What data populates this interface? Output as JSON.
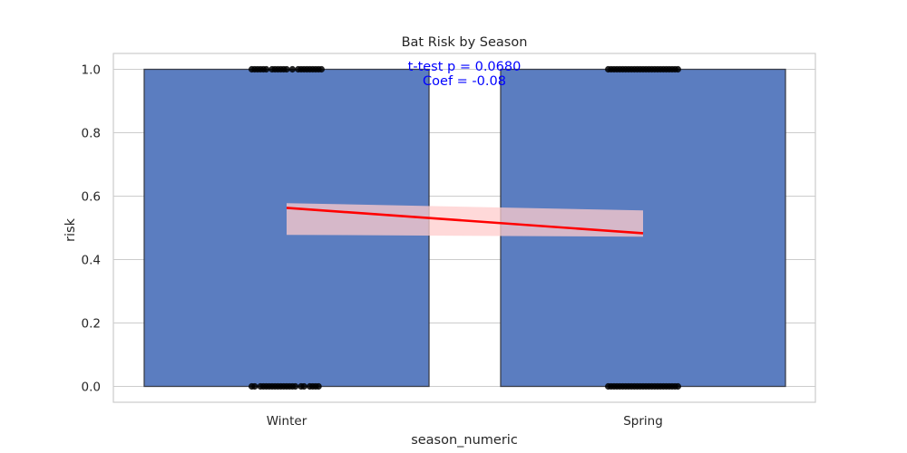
{
  "chart_data": {
    "type": "bar",
    "title": "Bat Risk by Season",
    "xlabel": "season_numeric",
    "ylabel": "risk",
    "categories": [
      "Winter",
      "Spring"
    ],
    "values": [
      1.0,
      1.0
    ],
    "ylim": [
      -0.05,
      1.05
    ],
    "yticks": [
      0.0,
      0.2,
      0.4,
      0.6,
      0.8,
      1.0
    ],
    "ytick_labels": [
      "0.0",
      "0.2",
      "0.4",
      "0.6",
      "0.8",
      "1.0"
    ],
    "grid": true,
    "annotations": [
      "t-test p = 0.0680",
      "Coef = -0.08"
    ],
    "regression": {
      "x": [
        0,
        1
      ],
      "y": [
        0.563,
        0.483
      ],
      "ci_lower": [
        0.478,
        0.472
      ],
      "ci_upper": [
        0.578,
        0.555
      ]
    },
    "points": [
      {
        "x": 0,
        "y": 1.0,
        "offsets": [
          -0.12,
          -0.11,
          -0.1,
          -0.09,
          -0.08,
          -0.07,
          -0.05,
          -0.04,
          -0.03,
          -0.02,
          -0.01,
          0.0,
          0.02,
          0.04,
          0.05,
          0.06,
          0.07,
          0.08,
          0.09,
          0.1,
          0.11,
          0.12
        ]
      },
      {
        "x": 0,
        "y": 0.0,
        "offsets": [
          -0.12,
          -0.11,
          -0.09,
          -0.08,
          -0.07,
          -0.06,
          -0.05,
          -0.04,
          -0.03,
          -0.02,
          -0.01,
          0.0,
          0.01,
          0.02,
          0.03,
          0.05,
          0.06,
          0.08,
          0.09,
          0.1,
          0.11
        ]
      },
      {
        "x": 1,
        "y": 1.0,
        "offsets": [
          -0.12,
          -0.11,
          -0.1,
          -0.09,
          -0.08,
          -0.07,
          -0.06,
          -0.05,
          -0.04,
          -0.03,
          -0.02,
          -0.01,
          0.0,
          0.01,
          0.02,
          0.03,
          0.04,
          0.05,
          0.06,
          0.07,
          0.08,
          0.09,
          0.1,
          0.11,
          0.12
        ]
      },
      {
        "x": 1,
        "y": 0.0,
        "offsets": [
          -0.12,
          -0.11,
          -0.1,
          -0.09,
          -0.08,
          -0.07,
          -0.06,
          -0.05,
          -0.04,
          -0.03,
          -0.02,
          -0.01,
          0.0,
          0.01,
          0.02,
          0.03,
          0.04,
          0.05,
          0.06,
          0.07,
          0.08,
          0.09,
          0.1,
          0.11,
          0.12
        ]
      }
    ],
    "colors": {
      "bar": "#5b7dc0",
      "bar_edge": "#3a3f4a",
      "points": "#000000",
      "line": "#ff0000",
      "ci_band": "#ffcccc",
      "annotation": "#0000ff",
      "grid": "#cccccc",
      "axes": "#cccccc"
    }
  }
}
